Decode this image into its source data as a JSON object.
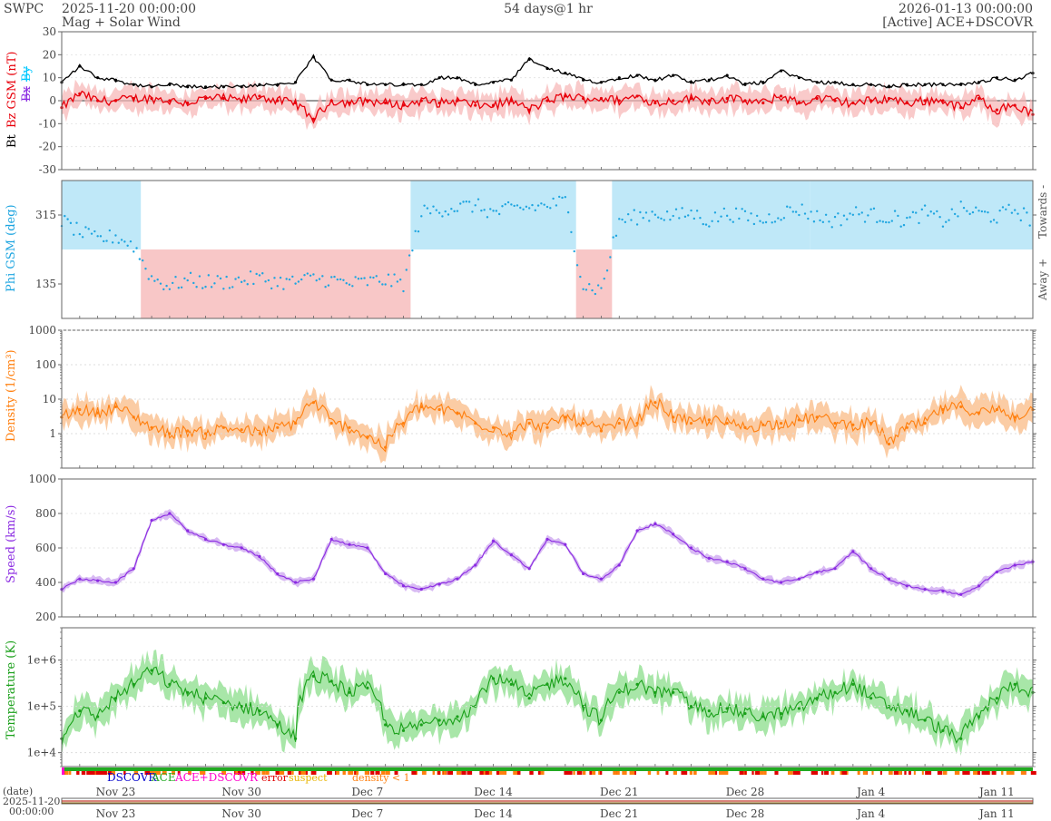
{
  "header": {
    "brand": "SWPC",
    "start_time": "2025-11-20 00:00:00",
    "product": "Mag + Solar Wind",
    "span": "54 days@1 hr",
    "end_time": "2026-01-13 00:00:00",
    "source": "[Active] ACE+DSCOVR"
  },
  "colors": {
    "bt": "#000000",
    "bz": "#e8000b",
    "bx": "#8b2be2",
    "by": "#00c8ff",
    "phi_points": "#1ea5e0",
    "towards_band": "#bfe8f8",
    "away_band": "#f8c7c7",
    "density": "#ff7f0e",
    "density_band": "#fbc79a",
    "speed": "#8b2be2",
    "speed_band": "#d4b3f2",
    "temperature": "#1aa01a",
    "temperature_band": "#9ee39e",
    "dscovr": "#0000cc",
    "ace": "#22aa22",
    "ace_dscovr": "#ff00cc",
    "error": "#e00000",
    "suspect": "#e8b400",
    "density_lt1": "#ff7f0e"
  },
  "legend": {
    "dscovr": "DSCOVR",
    "ace": "ACE",
    "ace_dscovr": "ACE+DSCOVR",
    "error": "error",
    "suspect": "suspect",
    "density_lt1": "density < 1"
  },
  "timeline": {
    "label_date": "(date)",
    "label_start_date": "2025-11-20",
    "label_start_time": "00:00:00",
    "date_ticks": [
      "Nov 23",
      "Nov 30",
      "Dec 7",
      "Dec 14",
      "Dec 21",
      "Dec 28",
      "Jan 4",
      "Jan 11"
    ]
  },
  "chart_data": [
    {
      "type": "line",
      "ylabel_parts": [
        "Bt",
        "Bz GSM (nT)",
        "Bx",
        "By"
      ],
      "series": [
        {
          "name": "Bt",
          "x": [
            0,
            1,
            2,
            3,
            4,
            5,
            6,
            7,
            8,
            9,
            10,
            11,
            12,
            13,
            14,
            15,
            16,
            17,
            18,
            19,
            20,
            21,
            22,
            23,
            24,
            25,
            26,
            27,
            28,
            29,
            30,
            31,
            32,
            33,
            34,
            35,
            36,
            37,
            38,
            39,
            40,
            41,
            42,
            43,
            44,
            45,
            46,
            47,
            48,
            49,
            50,
            51,
            52,
            53,
            54
          ],
          "y": [
            8,
            15,
            10,
            9,
            7,
            6,
            7,
            6,
            6,
            6,
            6,
            7,
            7,
            8,
            19,
            9,
            9,
            7,
            7,
            7,
            7,
            10,
            10,
            7,
            8,
            9,
            18,
            14,
            12,
            9,
            8,
            10,
            11,
            9,
            11,
            8,
            9,
            11,
            7,
            8,
            13,
            10,
            8,
            8,
            7,
            7,
            6,
            7,
            7,
            7,
            7,
            8,
            10,
            9,
            12
          ]
        },
        {
          "name": "Bz",
          "x": [
            0,
            1,
            2,
            3,
            4,
            5,
            6,
            7,
            8,
            9,
            10,
            11,
            12,
            13,
            14,
            15,
            16,
            17,
            18,
            19,
            20,
            21,
            22,
            23,
            24,
            25,
            26,
            27,
            28,
            29,
            30,
            31,
            32,
            33,
            34,
            35,
            36,
            37,
            38,
            39,
            40,
            41,
            42,
            43,
            44,
            45,
            46,
            47,
            48,
            49,
            50,
            51,
            52,
            53,
            54
          ],
          "y": [
            -3,
            3,
            0,
            0,
            1,
            1,
            0,
            -1,
            1,
            1,
            0,
            2,
            0,
            -1,
            -8,
            0,
            -1,
            0,
            -1,
            -2,
            0,
            -1,
            0,
            -2,
            -2,
            0,
            -4,
            0,
            2,
            1,
            1,
            0,
            2,
            -1,
            0,
            1,
            0,
            1,
            0,
            -1,
            2,
            -1,
            1,
            0,
            -1,
            0,
            1,
            -1,
            0,
            0,
            -3,
            1,
            -4,
            -2,
            -6
          ]
        }
      ],
      "ylim": [
        -30,
        30
      ],
      "yticks": [
        -30,
        -20,
        -10,
        0,
        10,
        20,
        30
      ]
    },
    {
      "type": "scatter",
      "ylabel": "Phi GSM (deg)",
      "right_labels": [
        "Towards -",
        "Away +"
      ],
      "yticks": [
        135,
        315
      ],
      "ylim": [
        45,
        405
      ],
      "sectors": [
        {
          "from": 0,
          "to": 4.4,
          "sector": "towards"
        },
        {
          "from": 4.4,
          "to": 19.4,
          "sector": "away"
        },
        {
          "from": 19.4,
          "to": 28.6,
          "sector": "towards"
        },
        {
          "from": 28.6,
          "to": 30.6,
          "sector": "away"
        },
        {
          "from": 30.6,
          "to": 41.6,
          "sector": "towards"
        },
        {
          "from": 41.6,
          "to": 54,
          "sector": "towards"
        }
      ],
      "series": [
        {
          "name": "Phi",
          "x": [
            0,
            1,
            2,
            3,
            4,
            5,
            6,
            7,
            8,
            9,
            10,
            11,
            12,
            13,
            14,
            15,
            16,
            17,
            18,
            19,
            20,
            21,
            22,
            23,
            24,
            25,
            26,
            27,
            28,
            29,
            30,
            31,
            32,
            33,
            34,
            35,
            36,
            37,
            38,
            39,
            40,
            41,
            42,
            43,
            44,
            45,
            46,
            47,
            48,
            49,
            50,
            51,
            52,
            53,
            54
          ],
          "y": [
            300,
            270,
            250,
            260,
            235,
            150,
            130,
            145,
            140,
            140,
            145,
            150,
            140,
            140,
            150,
            145,
            135,
            140,
            145,
            135,
            320,
            330,
            335,
            340,
            320,
            330,
            335,
            340,
            350,
            130,
            120,
            300,
            310,
            320,
            310,
            320,
            300,
            320,
            310,
            300,
            320,
            330,
            310,
            300,
            320,
            315,
            310,
            300,
            320,
            300,
            330,
            320,
            310,
            330,
            300
          ]
        }
      ]
    },
    {
      "type": "line",
      "ylabel": "Density (1/cm³)",
      "log": true,
      "ylim": [
        0.1,
        1000
      ],
      "ytick_labels": [
        "1",
        "10",
        "100",
        "1000"
      ],
      "series": [
        {
          "name": "Density",
          "x": [
            0,
            1,
            2,
            3,
            4,
            5,
            6,
            7,
            8,
            9,
            10,
            11,
            12,
            13,
            14,
            15,
            16,
            17,
            18,
            19,
            20,
            21,
            22,
            23,
            24,
            25,
            26,
            27,
            28,
            29,
            30,
            31,
            32,
            33,
            34,
            35,
            36,
            37,
            38,
            39,
            40,
            41,
            42,
            43,
            44,
            45,
            46,
            47,
            48,
            49,
            50,
            51,
            52,
            53,
            54
          ],
          "y": [
            3,
            5,
            4,
            6,
            3,
            1.5,
            1,
            1.2,
            1,
            1.5,
            1.3,
            1,
            1.5,
            2,
            8,
            2,
            1.5,
            0.8,
            0.4,
            2,
            6,
            5,
            4,
            2,
            1.5,
            1,
            2,
            1.5,
            3,
            2,
            1.2,
            2,
            2,
            8,
            3,
            2,
            2.5,
            2,
            1.5,
            1.8,
            2,
            2.5,
            3,
            2,
            1.8,
            2,
            0.5,
            1.5,
            2,
            5,
            6,
            4,
            5,
            3,
            5
          ]
        }
      ]
    },
    {
      "type": "line",
      "ylabel": "Speed (km/s)",
      "ylim": [
        200,
        1000
      ],
      "yticks": [
        200,
        400,
        600,
        800,
        1000
      ],
      "series": [
        {
          "name": "Speed",
          "x": [
            0,
            1,
            2,
            3,
            4,
            5,
            6,
            7,
            8,
            9,
            10,
            11,
            12,
            13,
            14,
            15,
            16,
            17,
            18,
            19,
            20,
            21,
            22,
            23,
            24,
            25,
            26,
            27,
            28,
            29,
            30,
            31,
            32,
            33,
            34,
            35,
            36,
            37,
            38,
            39,
            40,
            41,
            42,
            43,
            44,
            45,
            46,
            47,
            48,
            49,
            50,
            51,
            52,
            53,
            54
          ],
          "y": [
            360,
            420,
            410,
            400,
            480,
            760,
            800,
            700,
            650,
            620,
            600,
            550,
            450,
            400,
            420,
            650,
            620,
            600,
            450,
            380,
            360,
            390,
            420,
            500,
            640,
            560,
            480,
            650,
            620,
            450,
            420,
            500,
            700,
            740,
            680,
            600,
            540,
            520,
            480,
            420,
            400,
            420,
            460,
            480,
            580,
            480,
            420,
            380,
            360,
            350,
            330,
            380,
            460,
            500,
            520
          ]
        }
      ]
    },
    {
      "type": "line",
      "ylabel": "Temperature (K)",
      "log": true,
      "ylim": [
        5000,
        5000000
      ],
      "ytick_labels": [
        "1e+4",
        "1e+5",
        "1e+6"
      ],
      "series": [
        {
          "name": "Temperature",
          "x": [
            0,
            1,
            2,
            3,
            4,
            5,
            6,
            7,
            8,
            9,
            10,
            11,
            12,
            13,
            14,
            15,
            16,
            17,
            18,
            19,
            20,
            21,
            22,
            23,
            24,
            25,
            26,
            27,
            28,
            29,
            30,
            31,
            32,
            33,
            34,
            35,
            36,
            37,
            38,
            39,
            40,
            41,
            42,
            43,
            44,
            45,
            46,
            47,
            48,
            49,
            50,
            51,
            52,
            53,
            54
          ],
          "y": [
            20000,
            80000,
            60000,
            150000,
            300000,
            600000,
            300000,
            200000,
            150000,
            120000,
            100000,
            80000,
            40000,
            20000,
            450000,
            350000,
            200000,
            250000,
            40000,
            30000,
            40000,
            50000,
            60000,
            100000,
            400000,
            300000,
            150000,
            300000,
            400000,
            100000,
            50000,
            200000,
            300000,
            200000,
            200000,
            100000,
            80000,
            90000,
            70000,
            60000,
            70000,
            90000,
            150000,
            200000,
            300000,
            150000,
            100000,
            80000,
            50000,
            30000,
            20000,
            60000,
            150000,
            300000,
            200000
          ]
        }
      ]
    }
  ]
}
